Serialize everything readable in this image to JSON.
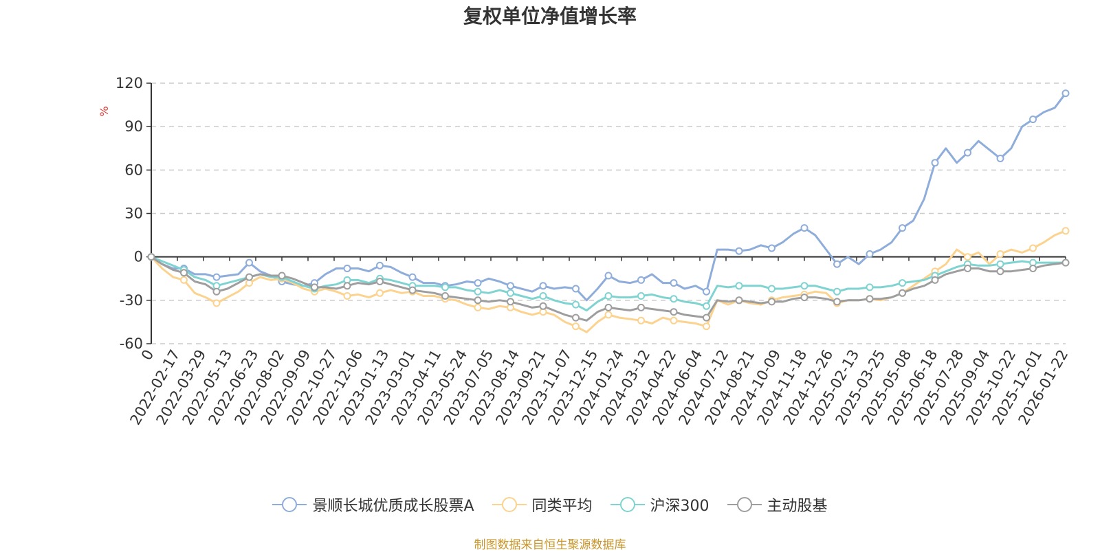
{
  "title": "复权单位净值增长率",
  "source_note": "制图数据来自恒生聚源数据库",
  "colors": {
    "fund": "#8fadda",
    "peer": "#fbd38f",
    "hs300": "#7fd3d1",
    "active": "#9e9e9e",
    "axis": "#333333",
    "grid": "#cccccc",
    "ylabel": "#e53935"
  },
  "chart_data": {
    "type": "line",
    "ylabel": "%",
    "ylim": [
      -60,
      120
    ],
    "yticks": [
      -60,
      -30,
      0,
      30,
      60,
      90,
      120
    ],
    "grid": "dashed horizontal",
    "legend_position": "bottom",
    "xtick_labels": [
      "0",
      "2022-02-17",
      "2022-03-29",
      "2022-05-13",
      "2022-06-23",
      "2022-08-02",
      "2022-09-09",
      "2022-10-27",
      "2022-12-06",
      "2023-01-13",
      "2023-03-01",
      "2023-04-11",
      "2023-05-24",
      "2023-07-05",
      "2023-08-14",
      "2023-09-21",
      "2023-11-07",
      "2023-12-15",
      "2024-01-24",
      "2024-03-12",
      "2024-04-22",
      "2024-06-04",
      "2024-07-12",
      "2024-08-21",
      "2024-10-09",
      "2024-11-18",
      "2024-12-26",
      "2025-02-13",
      "2025-03-25",
      "2025-05-08",
      "2025-06-18",
      "2025-07-28",
      "2025-09-04",
      "2025-10-22",
      "2025-12-01",
      "2026-01-22"
    ],
    "series": [
      {
        "name": "景顺长城优质成长股票A",
        "color": "#8fadda",
        "values": [
          0,
          -5,
          -8,
          -8,
          -12,
          -12,
          -14,
          -13,
          -12,
          -4,
          -10,
          -13,
          -17,
          -19,
          -20,
          -18,
          -12,
          -8,
          -8,
          -8,
          -10,
          -6,
          -7,
          -11,
          -14,
          -18,
          -18,
          -20,
          -19,
          -17,
          -18,
          -15,
          -17,
          -20,
          -22,
          -24,
          -20,
          -22,
          -21,
          -22,
          -30,
          -22,
          -13,
          -17,
          -18,
          -16,
          -12,
          -18,
          -18,
          -22,
          -20,
          -24,
          5,
          5,
          4,
          5,
          8,
          6,
          10,
          16,
          20,
          15,
          5,
          -5,
          0,
          -5,
          2,
          5,
          10,
          20,
          25,
          40,
          65,
          75,
          65,
          72,
          80,
          74,
          68,
          75,
          90,
          95,
          100,
          103,
          113
        ]
      },
      {
        "name": "同类平均",
        "color": "#fbd38f",
        "values": [
          0,
          -8,
          -14,
          -16,
          -25,
          -28,
          -32,
          -28,
          -24,
          -18,
          -14,
          -16,
          -15,
          -18,
          -22,
          -24,
          -22,
          -24,
          -27,
          -26,
          -28,
          -25,
          -23,
          -25,
          -24,
          -27,
          -27,
          -29,
          -30,
          -33,
          -35,
          -36,
          -34,
          -35,
          -38,
          -40,
          -38,
          -40,
          -45,
          -48,
          -52,
          -45,
          -40,
          -42,
          -43,
          -44,
          -46,
          -42,
          -44,
          -45,
          -46,
          -48,
          -30,
          -33,
          -30,
          -32,
          -33,
          -30,
          -28,
          -27,
          -26,
          -24,
          -25,
          -32,
          -30,
          -30,
          -29,
          -30,
          -28,
          -25,
          -20,
          -15,
          -10,
          -5,
          5,
          0,
          3,
          -5,
          2,
          5,
          3,
          6,
          10,
          15,
          18
        ]
      },
      {
        "name": "沪深300",
        "color": "#7fd3d1",
        "values": [
          0,
          -3,
          -6,
          -9,
          -14,
          -16,
          -20,
          -18,
          -16,
          -14,
          -12,
          -14,
          -14,
          -17,
          -20,
          -22,
          -20,
          -19,
          -16,
          -16,
          -18,
          -15,
          -16,
          -18,
          -20,
          -20,
          -20,
          -21,
          -21,
          -23,
          -24,
          -25,
          -23,
          -25,
          -27,
          -29,
          -27,
          -30,
          -32,
          -33,
          -37,
          -31,
          -27,
          -28,
          -28,
          -27,
          -26,
          -28,
          -29,
          -31,
          -32,
          -34,
          -20,
          -21,
          -20,
          -20,
          -20,
          -22,
          -22,
          -21,
          -20,
          -20,
          -22,
          -24,
          -22,
          -22,
          -21,
          -21,
          -20,
          -18,
          -17,
          -16,
          -13,
          -10,
          -7,
          -5,
          -6,
          -6,
          -5,
          -4,
          -3,
          -4,
          -4,
          -4,
          -4
        ]
      },
      {
        "name": "主动股基",
        "color": "#9e9e9e",
        "values": [
          0,
          -5,
          -9,
          -11,
          -17,
          -19,
          -24,
          -22,
          -18,
          -14,
          -12,
          -13,
          -13,
          -15,
          -18,
          -21,
          -21,
          -22,
          -20,
          -18,
          -19,
          -17,
          -19,
          -21,
          -23,
          -24,
          -25,
          -27,
          -28,
          -29,
          -30,
          -31,
          -30,
          -31,
          -33,
          -35,
          -34,
          -37,
          -40,
          -42,
          -44,
          -38,
          -35,
          -36,
          -37,
          -35,
          -36,
          -37,
          -38,
          -40,
          -41,
          -42,
          -30,
          -31,
          -30,
          -31,
          -32,
          -31,
          -31,
          -29,
          -28,
          -28,
          -29,
          -31,
          -30,
          -30,
          -29,
          -29,
          -28,
          -25,
          -22,
          -20,
          -16,
          -12,
          -10,
          -8,
          -8,
          -10,
          -10,
          -10,
          -9,
          -8,
          -6,
          -5,
          -4
        ]
      }
    ]
  }
}
